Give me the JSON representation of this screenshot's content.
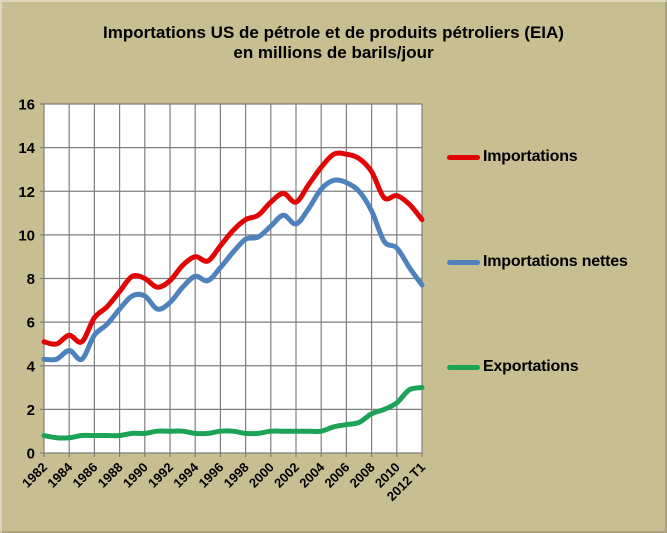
{
  "title": {
    "line1": "Importations US de pétrole et de produits pétroliers (EIA)",
    "line2": "en millions de barils/jour"
  },
  "colors": {
    "background": "#c7be92",
    "plot_background": "#ffffff",
    "grid": "#7f7f7f",
    "text": "#000000"
  },
  "chart_data": {
    "type": "line",
    "x": [
      1982,
      1983,
      1984,
      1985,
      1986,
      1987,
      1988,
      1989,
      1990,
      1991,
      1992,
      1993,
      1994,
      1995,
      1996,
      1997,
      1998,
      1999,
      2000,
      2001,
      2002,
      2003,
      2004,
      2005,
      2006,
      2007,
      2008,
      2009,
      2010,
      2011,
      "2012 T1"
    ],
    "x_tick_labels": [
      "1982",
      "1984",
      "1986",
      "1988",
      "1990",
      "1992",
      "1994",
      "1996",
      "1998",
      "2000",
      "2002",
      "2004",
      "2006",
      "2008",
      "2010",
      "2012 T1"
    ],
    "y_ticks": [
      0,
      2,
      4,
      6,
      8,
      10,
      12,
      14,
      16
    ],
    "ylim": [
      0,
      16
    ],
    "grid": true,
    "smoothed_lines": true,
    "legend_position": "right",
    "series": [
      {
        "name": "Importations",
        "color": "#e10505",
        "values": [
          5.1,
          5.0,
          5.4,
          5.1,
          6.2,
          6.7,
          7.4,
          8.1,
          8.0,
          7.6,
          7.9,
          8.6,
          9.0,
          8.8,
          9.5,
          10.2,
          10.7,
          10.9,
          11.5,
          11.9,
          11.5,
          12.3,
          13.1,
          13.7,
          13.7,
          13.5,
          12.9,
          11.7,
          11.8,
          11.4,
          10.7
        ]
      },
      {
        "name": "Importations nettes",
        "color": "#4f81bd",
        "values": [
          4.3,
          4.3,
          4.7,
          4.3,
          5.4,
          5.9,
          6.6,
          7.2,
          7.2,
          6.6,
          6.9,
          7.6,
          8.1,
          7.9,
          8.5,
          9.2,
          9.8,
          9.9,
          10.4,
          10.9,
          10.5,
          11.2,
          12.1,
          12.5,
          12.4,
          12.0,
          11.1,
          9.7,
          9.4,
          8.5,
          7.7
        ]
      },
      {
        "name": "Exportations",
        "color": "#1da355",
        "values": [
          0.8,
          0.7,
          0.7,
          0.8,
          0.8,
          0.8,
          0.8,
          0.9,
          0.9,
          1.0,
          1.0,
          1.0,
          0.9,
          0.9,
          1.0,
          1.0,
          0.9,
          0.9,
          1.0,
          1.0,
          1.0,
          1.0,
          1.0,
          1.2,
          1.3,
          1.4,
          1.8,
          2.0,
          2.3,
          2.9,
          3.0
        ]
      }
    ]
  }
}
